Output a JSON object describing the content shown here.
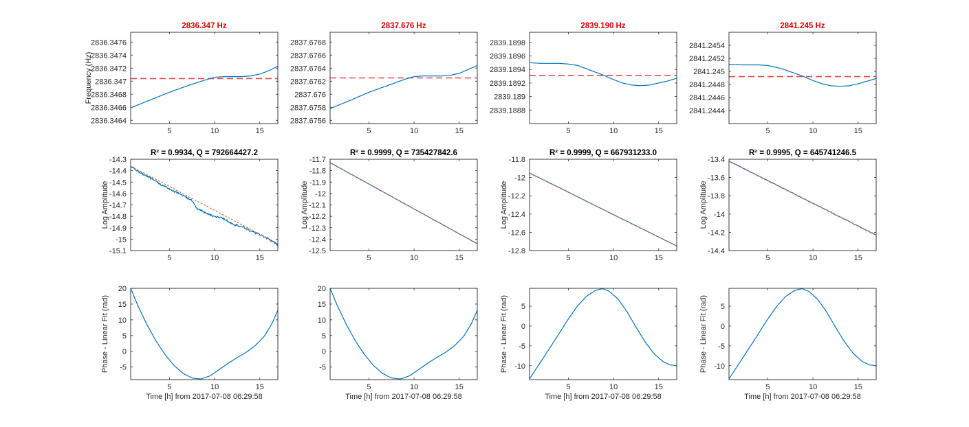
{
  "figure": {
    "xlabel": "Time [h] from 2017-07-08 06:29:58",
    "colors": {
      "data": "#0072BD",
      "fit": "#D95319",
      "reference": "#E8484A",
      "title_red": "#E00000",
      "axis": "#262626"
    }
  },
  "chart_data": [
    {
      "type": "line",
      "row": 1,
      "col": 1,
      "title": "2836.347 Hz",
      "xlabel": "",
      "ylabel": "Frequency (Hz)",
      "xlim": [
        0.7,
        17
      ],
      "ylim": [
        2836.34635,
        2836.34775
      ],
      "xticks": [
        5,
        10,
        15
      ],
      "yticks": [
        2836.3464,
        2836.3466,
        2836.3468,
        2836.347,
        2836.3472,
        2836.3474,
        2836.3476
      ],
      "ytick_labels": [
        "2836.3464",
        "2836.3466",
        "2836.3468",
        "2836.347",
        "2836.3472",
        "2836.3474",
        "2836.3476"
      ],
      "reference_line": 2836.34704,
      "series": [
        {
          "x": [
            0.7,
            3,
            5,
            7,
            9,
            10,
            11,
            12,
            13,
            14,
            15,
            16,
            17
          ],
          "y": [
            2836.34659,
            2836.34672,
            2836.34683,
            2836.34693,
            2836.34702,
            2836.34706,
            2836.34707,
            2836.34707,
            2836.34707,
            2836.34708,
            2836.34711,
            2836.34716,
            2836.34723
          ]
        }
      ]
    },
    {
      "type": "line",
      "row": 1,
      "col": 2,
      "title": "2837.676 Hz",
      "xlabel": "",
      "ylabel": "",
      "xlim": [
        0.7,
        17
      ],
      "ylim": [
        2837.67555,
        2837.67695
      ],
      "xticks": [
        5,
        10,
        15
      ],
      "yticks": [
        2837.6756,
        2837.6758,
        2837.676,
        2837.6762,
        2837.6764,
        2837.6766,
        2837.6768
      ],
      "ytick_labels": [
        "2837.6756",
        "2837.6758",
        "2837.676",
        "2837.6762",
        "2837.6764",
        "2837.6766",
        "2837.6768"
      ],
      "reference_line": 2837.67625,
      "series": [
        {
          "x": [
            0.7,
            3,
            5,
            7,
            9,
            10,
            11,
            12,
            13,
            14,
            15,
            16,
            17
          ],
          "y": [
            2837.67578,
            2837.67591,
            2837.67603,
            2837.67613,
            2837.67623,
            2837.67627,
            2837.67628,
            2837.67628,
            2837.67628,
            2837.67629,
            2837.67632,
            2837.67638,
            2837.67644
          ]
        }
      ]
    },
    {
      "type": "line",
      "row": 1,
      "col": 3,
      "title": "2839.190 Hz",
      "xlabel": "",
      "ylabel": "",
      "xlim": [
        0.7,
        17
      ],
      "ylim": [
        2839.1886,
        2839.18995
      ],
      "xticks": [
        5,
        10,
        15
      ],
      "yticks": [
        2839.1888,
        2839.189,
        2839.1892,
        2839.1894,
        2839.1896,
        2839.1898
      ],
      "ytick_labels": [
        "2839.1888",
        "2839.189",
        "2839.1892",
        "2839.1894",
        "2839.1896",
        "2839.1898"
      ],
      "reference_line": 2839.18931,
      "series": [
        {
          "x": [
            0.7,
            2,
            4,
            5,
            6,
            7,
            8,
            9,
            10,
            11,
            12,
            13,
            14,
            15,
            16,
            17
          ],
          "y": [
            2839.1895,
            2839.18949,
            2839.18949,
            2839.18948,
            2839.18946,
            2839.18941,
            2839.18936,
            2839.18931,
            2839.18925,
            2839.1892,
            2839.18917,
            2839.18916,
            2839.18917,
            2839.1892,
            2839.18923,
            2839.18927
          ]
        }
      ]
    },
    {
      "type": "line",
      "row": 1,
      "col": 4,
      "title": "2841.245 Hz",
      "xlabel": "",
      "ylabel": "",
      "xlim": [
        0.7,
        17
      ],
      "ylim": [
        2841.2442,
        2841.2456
      ],
      "xticks": [
        5,
        10,
        15
      ],
      "yticks": [
        2841.2444,
        2841.2446,
        2841.2448,
        2841.245,
        2841.2452,
        2841.2454
      ],
      "ytick_labels": [
        "2841.2444",
        "2841.2446",
        "2841.2448",
        "2841.245",
        "2841.2452",
        "2841.2454"
      ],
      "reference_line": 2841.24492,
      "series": [
        {
          "x": [
            0.7,
            2,
            4,
            5,
            6,
            7,
            8,
            9,
            10,
            11,
            12,
            13,
            14,
            15,
            16,
            17
          ],
          "y": [
            2841.24511,
            2841.2451,
            2841.2451,
            2841.24509,
            2841.24506,
            2841.24502,
            2841.24497,
            2841.24492,
            2841.24486,
            2841.24481,
            2841.24478,
            2841.24477,
            2841.24478,
            2841.24481,
            2841.24485,
            2841.24489
          ]
        }
      ]
    },
    {
      "type": "line",
      "row": 2,
      "col": 1,
      "title": "R² = 0.9934, Q = 792664427.2",
      "xlabel": "",
      "ylabel": "Log Amplitude",
      "xlim": [
        0.7,
        17
      ],
      "ylim": [
        -15.1,
        -14.3
      ],
      "xticks": [
        5,
        10,
        15
      ],
      "yticks": [
        -15.1,
        -15,
        -14.9,
        -14.8,
        -14.7,
        -14.6,
        -14.5,
        -14.4,
        -14.3
      ],
      "ytick_labels": [
        "-15.1",
        "-15",
        "-14.9",
        "-14.8",
        "-14.7",
        "-14.6",
        "-14.5",
        "-14.4",
        "-14.3"
      ],
      "noise": 0.008,
      "series": [
        {
          "name": "",
          "x": [
            0.7,
            2,
            3,
            4,
            5,
            6,
            7,
            7.5,
            8,
            9,
            10,
            11,
            12,
            13,
            14,
            15,
            16,
            17
          ],
          "y": [
            -14.36,
            -14.43,
            -14.47,
            -14.52,
            -14.56,
            -14.6,
            -14.64,
            -14.66,
            -14.73,
            -14.77,
            -14.8,
            -14.82,
            -14.87,
            -14.89,
            -14.93,
            -14.96,
            -15.0,
            -15.05
          ]
        },
        {
          "name": "",
          "role": "fit",
          "x": [
            0.7,
            17
          ],
          "y": [
            -14.36,
            -15.04
          ]
        }
      ]
    },
    {
      "type": "line",
      "row": 2,
      "col": 2,
      "title": "R² = 0.9999, Q = 735427842.6",
      "xlabel": "",
      "ylabel": "Log Amplitude",
      "xlim": [
        0.7,
        17
      ],
      "ylim": [
        -12.5,
        -11.7
      ],
      "xticks": [
        5,
        10,
        15
      ],
      "yticks": [
        -12.5,
        -12.4,
        -12.3,
        -12.2,
        -12.1,
        -12,
        -11.9,
        -11.8,
        -11.7
      ],
      "ytick_labels": [
        "-12.5",
        "-12.4",
        "-12.3",
        "-12.2",
        "-12.1",
        "-12",
        "-11.9",
        "-11.8",
        "-11.7"
      ],
      "noise": 0.0015,
      "series": [
        {
          "name": "",
          "x": [
            0.7,
            17
          ],
          "y": [
            -11.73,
            -12.44
          ]
        },
        {
          "name": "",
          "role": "fit",
          "x": [
            0.7,
            17
          ],
          "y": [
            -11.73,
            -12.44
          ]
        }
      ]
    },
    {
      "type": "line",
      "row": 2,
      "col": 3,
      "title": "R² = 0.9999, Q = 667931233.0",
      "xlabel": "",
      "ylabel": "Log Amplitude",
      "xlim": [
        0.7,
        17
      ],
      "ylim": [
        -12.8,
        -11.8
      ],
      "xticks": [
        5,
        10,
        15
      ],
      "yticks": [
        -12.8,
        -12.6,
        -12.4,
        -12.2,
        -12,
        -11.8
      ],
      "ytick_labels": [
        "-12.8",
        "-12.6",
        "-12.4",
        "-12.2",
        "-12",
        "-11.8"
      ],
      "noise": 0.0015,
      "series": [
        {
          "name": "",
          "x": [
            0.7,
            17
          ],
          "y": [
            -11.95,
            -12.75
          ]
        },
        {
          "name": "",
          "role": "fit",
          "x": [
            0.7,
            17
          ],
          "y": [
            -11.95,
            -12.75
          ]
        }
      ]
    },
    {
      "type": "line",
      "row": 2,
      "col": 4,
      "title": "R² = 0.9995, Q = 645741246.5",
      "xlabel": "",
      "ylabel": "Log Amplitude",
      "xlim": [
        0.7,
        17
      ],
      "ylim": [
        -14.4,
        -13.4
      ],
      "xticks": [
        5,
        10,
        15
      ],
      "yticks": [
        -14.4,
        -14.2,
        -14,
        -13.8,
        -13.6,
        -13.4
      ],
      "ytick_labels": [
        "-14.4",
        "-14.2",
        "-14",
        "-13.8",
        "-13.6",
        "-13.4"
      ],
      "noise": 0.004,
      "series": [
        {
          "name": "",
          "x": [
            0.7,
            17
          ],
          "y": [
            -13.42,
            -14.23
          ]
        },
        {
          "name": "",
          "role": "fit",
          "x": [
            0.7,
            17
          ],
          "y": [
            -13.42,
            -14.23
          ]
        }
      ]
    },
    {
      "type": "line",
      "row": 3,
      "col": 1,
      "title": "",
      "xlabel": "Time [h] from 2017-07-08 06:29:58",
      "ylabel": "Phase - Linear Fit (rad)",
      "xlim": [
        0.7,
        17
      ],
      "ylim": [
        -9,
        20
      ],
      "xticks": [
        5,
        10,
        15
      ],
      "yticks": [
        -5,
        0,
        5,
        10,
        15,
        20
      ],
      "ytick_labels": [
        "-5",
        "0",
        "5",
        "10",
        "15",
        "20"
      ],
      "series": [
        {
          "x": [
            0.7,
            1.5,
            2.5,
            3.5,
            4.5,
            5.5,
            6.5,
            7.5,
            8.5,
            9.5,
            10.5,
            11.5,
            12.5,
            13.5,
            14.5,
            15.5,
            16.3,
            17
          ],
          "y": [
            20.0,
            14.5,
            8.5,
            3.3,
            -1.0,
            -4.5,
            -7.0,
            -8.5,
            -8.8,
            -7.8,
            -5.8,
            -3.8,
            -2.0,
            -0.3,
            1.8,
            4.8,
            8.5,
            13.0
          ]
        }
      ]
    },
    {
      "type": "line",
      "row": 3,
      "col": 2,
      "title": "",
      "xlabel": "Time [h] from 2017-07-08 06:29:58",
      "ylabel": "",
      "xlim": [
        0.7,
        17
      ],
      "ylim": [
        -9,
        20
      ],
      "xticks": [
        5,
        10,
        15
      ],
      "yticks": [
        -5,
        0,
        5,
        10,
        15,
        20
      ],
      "ytick_labels": [
        "-5",
        "0",
        "5",
        "10",
        "15",
        "20"
      ],
      "series": [
        {
          "x": [
            0.7,
            1.5,
            2.5,
            3.5,
            4.5,
            5.5,
            6.5,
            7.5,
            8.5,
            9.5,
            10.5,
            11.5,
            12.5,
            13.5,
            14.5,
            15.5,
            16.3,
            17
          ],
          "y": [
            20.0,
            14.5,
            8.5,
            3.3,
            -1.0,
            -4.5,
            -7.0,
            -8.5,
            -8.8,
            -7.8,
            -5.8,
            -3.8,
            -2.0,
            -0.3,
            1.8,
            4.8,
            8.5,
            13.0
          ]
        }
      ]
    },
    {
      "type": "line",
      "row": 3,
      "col": 3,
      "title": "",
      "xlabel": "Time [h] from 2017-07-08 06:29:58",
      "ylabel": "Phase - Linear Fit (rad)",
      "xlim": [
        0.7,
        17
      ],
      "ylim": [
        -13.5,
        9.5
      ],
      "xticks": [
        5,
        10,
        15
      ],
      "yticks": [
        -10,
        -5,
        0,
        5
      ],
      "ytick_labels": [
        "-10",
        "-5",
        "0",
        "5"
      ],
      "series": [
        {
          "x": [
            0.7,
            2,
            3,
            4,
            5,
            6,
            7,
            8,
            8.8,
            9.5,
            10.5,
            11.5,
            12.5,
            13.5,
            14.5,
            15.5,
            16.3,
            17
          ],
          "y": [
            -13.3,
            -8.8,
            -5.3,
            -1.8,
            1.8,
            5.0,
            7.5,
            9.0,
            9.4,
            8.8,
            6.8,
            3.6,
            -0.3,
            -4.0,
            -7.0,
            -9.0,
            -9.8,
            -10.0
          ]
        }
      ]
    },
    {
      "type": "line",
      "row": 3,
      "col": 4,
      "title": "",
      "xlabel": "Time [h] from 2017-07-08 06:29:58",
      "ylabel": "Phase - Linear Fit (rad)",
      "xlim": [
        0.7,
        17
      ],
      "ylim": [
        -13.5,
        9.5
      ],
      "xticks": [
        5,
        10,
        15
      ],
      "yticks": [
        -10,
        -5,
        0,
        5
      ],
      "ytick_labels": [
        "-10",
        "-5",
        "0",
        "5"
      ],
      "series": [
        {
          "x": [
            0.7,
            2,
            3,
            4,
            5,
            6,
            7,
            8,
            8.8,
            9.5,
            10.5,
            11.5,
            12.5,
            13.5,
            14.5,
            15.5,
            16.3,
            17
          ],
          "y": [
            -13.3,
            -8.8,
            -5.3,
            -1.8,
            1.8,
            5.0,
            7.5,
            9.0,
            9.4,
            8.8,
            6.8,
            3.6,
            -0.3,
            -4.0,
            -7.0,
            -9.0,
            -9.8,
            -10.0
          ]
        }
      ]
    }
  ]
}
